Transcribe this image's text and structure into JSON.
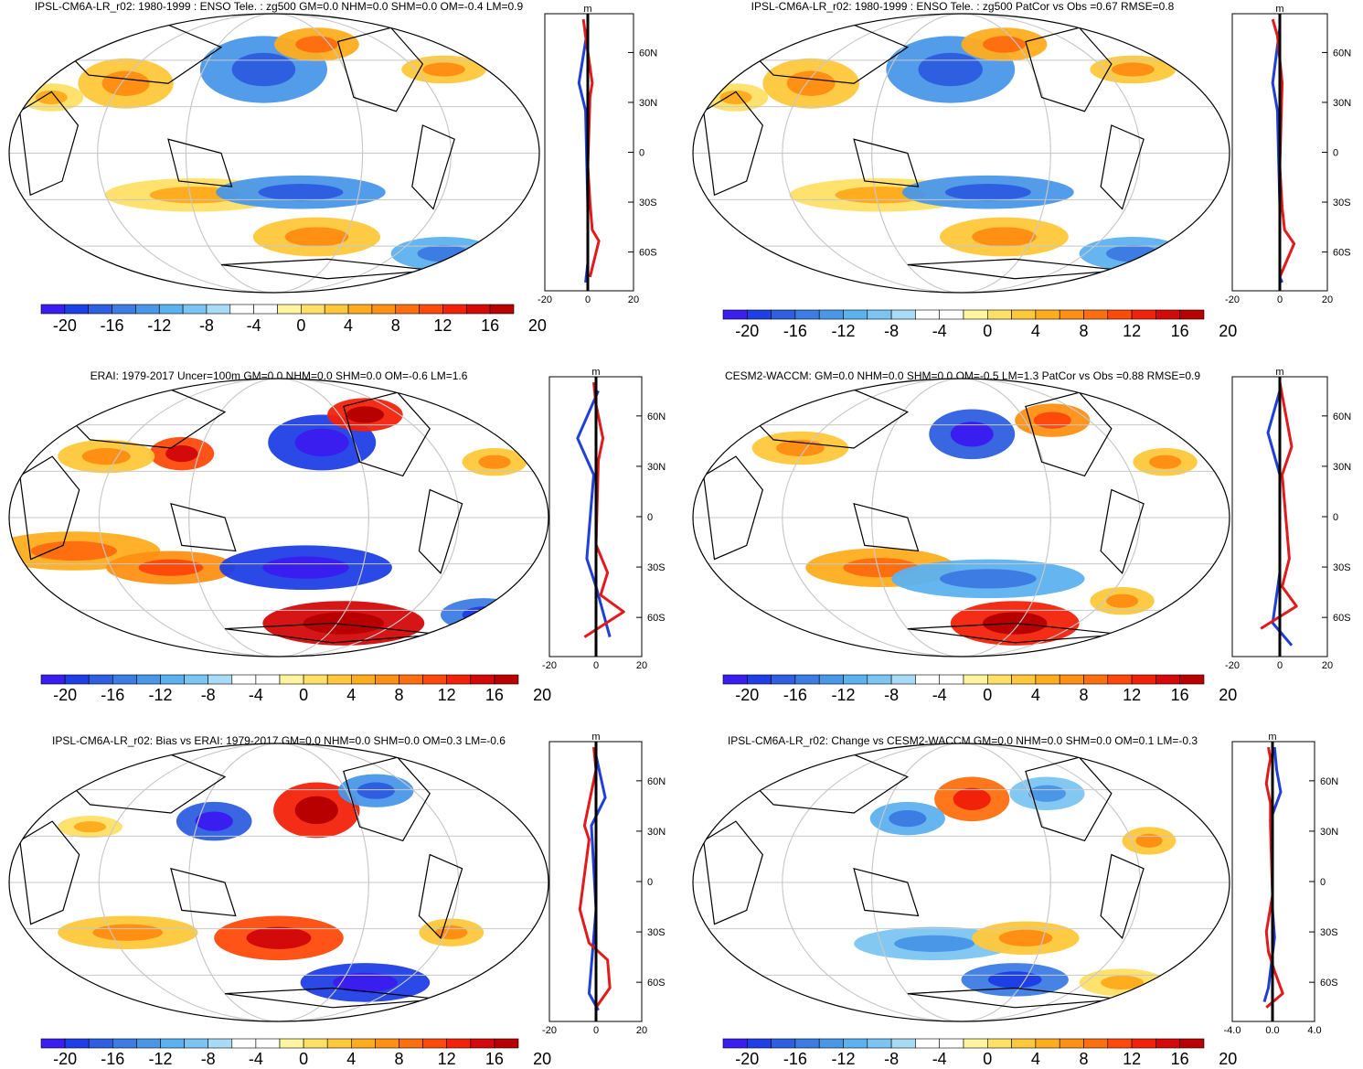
{
  "colorbar": {
    "ticks": [
      "-20",
      "-16",
      "-12",
      "-8",
      "-4",
      "0",
      "4",
      "8",
      "12",
      "16",
      "20"
    ],
    "colors": [
      "#3a1ef0",
      "#1f3fe6",
      "#2e5fe0",
      "#3c7ce3",
      "#4a97e8",
      "#5cb1ef",
      "#7cc5f2",
      "#a8dcf6",
      "#ffffff",
      "#ffffff",
      "#fff4a0",
      "#ffe066",
      "#ffc83a",
      "#ffad1f",
      "#ff9014",
      "#ff6f0f",
      "#ff4a0c",
      "#f2220a",
      "#d40a0a",
      "#b80000"
    ]
  },
  "profile": {
    "ytick_labels": [
      "60N",
      "30N",
      "0",
      "30S",
      "60S"
    ],
    "unit": "m",
    "xtick_labels_default": [
      "-20",
      "0",
      "20"
    ],
    "xtick_labels_change": [
      "-4.0",
      "0.0",
      "4.0"
    ],
    "series_colors": {
      "pos": "#e31a1c",
      "neg": "#1f3fd8",
      "total": "#000000"
    }
  },
  "panels": [
    {
      "title": "IPSL-CM6A-LR_r02: 1980-1999 : ENSO Tele. : zg500 GM=0.0 NHM=0.0 SHM=0.0 OM=-0.4 LM=0.9"
    },
    {
      "title": "IPSL-CM6A-LR_r02: 1980-1999 : ENSO Tele. : zg500 PatCor vs Obs =0.67 RMSE=0.8"
    },
    {
      "title": "ERAI: 1979-2017 Uncer=100m GM=0.0 NHM=0.0 SHM=0.0 OM=-0.6 LM=1.6"
    },
    {
      "title": "CESM2-WACCM: GM=0.0 NHM=0.0 SHM=0.0 OM=-0.5 LM=1.3 PatCor vs Obs =0.88 RMSE=0.9"
    },
    {
      "title": "IPSL-CM6A-LR_r02: Bias vs ERAI: 1979-2017 GM=0.0 NHM=0.0 SHM=0.0 OM=0.3 LM=-0.6"
    },
    {
      "title": "IPSL-CM6A-LR_r02: Change vs CESM2-WACCM GM=0.0 NHM=0.0 SHM=0.0 OM=0.1 LM=-0.3"
    }
  ],
  "chart_data": {
    "type": "heatmap",
    "variable": "zg500",
    "color_scale": {
      "min": -22,
      "max": 22,
      "levels": [
        -22,
        -20,
        -18,
        -16,
        -14,
        -12,
        -10,
        -8,
        -6,
        -4,
        -2,
        0,
        2,
        4,
        6,
        8,
        10,
        12,
        14,
        16,
        18,
        20,
        22
      ],
      "tick_labels": [
        "-20",
        "-16",
        "-12",
        "-8",
        "-4",
        "0",
        "4",
        "8",
        "12",
        "16",
        "20"
      ]
    },
    "zonal_profile": {
      "type": "line",
      "y_ticks": [
        "60N",
        "30N",
        "0",
        "30S",
        "60S"
      ],
      "xlim": [
        -20,
        20
      ]
    }
  }
}
